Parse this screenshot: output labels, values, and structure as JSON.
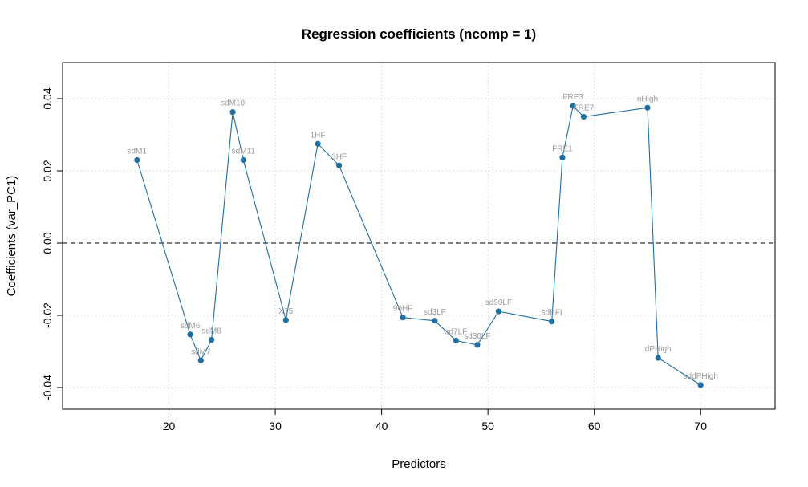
{
  "chart_data": {
    "type": "line",
    "title": "Regression coefficients (ncomp = 1)",
    "xlabel": "Predictors",
    "ylabel": "Coefficients (var_PC1)",
    "xlim": [
      10,
      77
    ],
    "ylim": [
      -0.046,
      0.05
    ],
    "x_ticks": [
      20,
      30,
      40,
      50,
      60,
      70
    ],
    "y_ticks": [
      -0.04,
      -0.02,
      0.0,
      0.02,
      0.04
    ],
    "y_tick_labels": [
      "-0.04",
      "-0.02",
      "0.00",
      "0.02",
      "0.04"
    ],
    "grid": true,
    "reference_line_y": 0,
    "line_color": "#1f6fa3",
    "point_color": "#1f6fa3",
    "label_color": "#9a9a9a",
    "points": [
      {
        "x": 17,
        "y": 0.023,
        "label": "sdM1"
      },
      {
        "x": 22,
        "y": -0.0253,
        "label": "sdM6"
      },
      {
        "x": 23,
        "y": -0.0325,
        "label": "sdM7"
      },
      {
        "x": 24,
        "y": -0.0268,
        "label": "sdM8"
      },
      {
        "x": 26,
        "y": 0.0363,
        "label": "sdM10"
      },
      {
        "x": 27,
        "y": 0.023,
        "label": "sdM11"
      },
      {
        "x": 31,
        "y": -0.0213,
        "label": "X75"
      },
      {
        "x": 34,
        "y": 0.0275,
        "label": "1HF"
      },
      {
        "x": 36,
        "y": 0.0215,
        "label": "3HF"
      },
      {
        "x": 42,
        "y": -0.0206,
        "label": "90HF"
      },
      {
        "x": 45,
        "y": -0.0215,
        "label": "sd3LF"
      },
      {
        "x": 47,
        "y": -0.027,
        "label": "sd7LF"
      },
      {
        "x": 49,
        "y": -0.0282,
        "label": "sd30LF"
      },
      {
        "x": 51,
        "y": -0.0189,
        "label": "sd90LF"
      },
      {
        "x": 56,
        "y": -0.0217,
        "label": "sdBFI"
      },
      {
        "x": 57,
        "y": 0.0237,
        "label": "FRE1"
      },
      {
        "x": 58,
        "y": 0.038,
        "label": "FRE3"
      },
      {
        "x": 59,
        "y": 0.035,
        "label": "FRE7"
      },
      {
        "x": 65,
        "y": 0.0375,
        "label": "nHigh"
      },
      {
        "x": 66,
        "y": -0.0318,
        "label": "dPHigh"
      },
      {
        "x": 70,
        "y": -0.0393,
        "label": "sddPHigh"
      }
    ]
  }
}
